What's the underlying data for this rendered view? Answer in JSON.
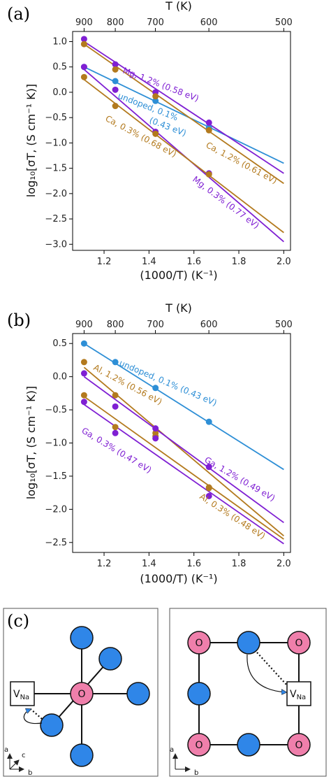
{
  "colors": {
    "undoped": "#2e8fd6",
    "purple": "#7f1fd3",
    "gold": "#b37a1e",
    "blue_site": "#2f86e8",
    "pink_site": "#ef7fab"
  },
  "chart_data": [
    {
      "type": "scatter",
      "panel_label": "(a)",
      "xlabel": "(1000/T) (K⁻¹)",
      "ylabel": "log₁₀[σT, (S cm⁻¹ K)]",
      "top_axis_label": "T (K)",
      "xlim": [
        1.06,
        2.03
      ],
      "ylim": [
        -3.12,
        1.2
      ],
      "x_ticks": [
        "1.2",
        "1.4",
        "1.6",
        "1.8",
        "2.0"
      ],
      "y_ticks": [
        "1.0",
        "0.5",
        "0.0",
        "−0.5",
        "−1.0",
        "−1.5",
        "−2.0",
        "−2.5",
        "−3.0"
      ],
      "top_ticks": [
        "900",
        "800",
        "700",
        "600",
        "500"
      ],
      "grid": false,
      "series": [
        {
          "label": "undoped, 0.1%\n(0.43 eV)",
          "color_key": "undoped",
          "x": [
            1.111,
            1.25,
            1.429,
            1.667
          ],
          "y": [
            0.5,
            0.22,
            -0.17,
            -0.7
          ],
          "fit": [
            [
              1.111,
              0.5
            ],
            [
              2.0,
              -1.4
            ]
          ]
        },
        {
          "label": "Mg, 1.2% (0.58 eV)",
          "color_key": "purple",
          "x": [
            1.111,
            1.25,
            1.429,
            1.667
          ],
          "y": [
            1.05,
            0.55,
            0.0,
            -0.6
          ],
          "fit": [
            [
              1.111,
              1.0
            ],
            [
              2.0,
              -1.6
            ]
          ]
        },
        {
          "label": "Mg, 0.3% (0.77 eV)",
          "color_key": "purple",
          "x": [
            1.111,
            1.25,
            1.429,
            1.667
          ],
          "y": [
            0.5,
            0.05,
            -0.78,
            -1.6
          ],
          "fit": [
            [
              1.111,
              0.45
            ],
            [
              2.0,
              -2.95
            ]
          ]
        },
        {
          "label": "Ca, 1.2% (0.61 eV)",
          "color_key": "gold",
          "x": [
            1.111,
            1.25,
            1.429,
            1.667
          ],
          "y": [
            0.95,
            0.45,
            -0.08,
            -0.75
          ],
          "fit": [
            [
              1.111,
              0.95
            ],
            [
              2.0,
              -1.8
            ]
          ]
        },
        {
          "label": "Ca, 0.3% (0.68 eV)",
          "color_key": "gold",
          "x": [
            1.111,
            1.25,
            1.429,
            1.667
          ],
          "y": [
            0.3,
            -0.27,
            -0.82,
            -1.62
          ],
          "fit": [
            [
              1.111,
              0.25
            ],
            [
              2.0,
              -2.77
            ]
          ]
        }
      ]
    },
    {
      "type": "scatter",
      "panel_label": "(b)",
      "xlabel": "(1000/T) (K⁻¹)",
      "ylabel": "log₁₀[σT, (S cm⁻¹ K)]",
      "top_axis_label": "T (K)",
      "xlim": [
        1.06,
        2.03
      ],
      "ylim": [
        -2.65,
        0.65
      ],
      "x_ticks": [
        "1.2",
        "1.4",
        "1.6",
        "1.8",
        "2.0"
      ],
      "y_ticks": [
        "0.5",
        "0.0",
        "−0.5",
        "−1.0",
        "−1.5",
        "−2.0",
        "−2.5"
      ],
      "top_ticks": [
        "900",
        "800",
        "700",
        "600",
        "500"
      ],
      "grid": false,
      "series": [
        {
          "label": "undoped, 0.1% (0.43 eV)",
          "color_key": "undoped",
          "x": [
            1.111,
            1.25,
            1.429,
            1.667
          ],
          "y": [
            0.5,
            0.22,
            -0.17,
            -0.68
          ],
          "fit": [
            [
              1.111,
              0.5
            ],
            [
              2.0,
              -1.4
            ]
          ]
        },
        {
          "label": "Al, 1.2% (0.56 eV)",
          "color_key": "gold",
          "x": [
            1.111,
            1.25,
            1.429,
            1.667
          ],
          "y": [
            0.22,
            -0.28,
            -0.85,
            -1.67
          ],
          "fit": [
            [
              1.111,
              0.14
            ],
            [
              2.0,
              -2.4
            ]
          ]
        },
        {
          "label": "Al, 0.3% (0.48 eV)",
          "color_key": "gold",
          "x": [
            1.111,
            1.25,
            1.429,
            1.667
          ],
          "y": [
            -0.28,
            -0.76,
            -0.9,
            -1.68
          ],
          "fit": [
            [
              1.111,
              -0.3
            ],
            [
              2.0,
              -2.45
            ]
          ]
        },
        {
          "label": "Ga, 1.2% (0.49 eV)",
          "color_key": "purple",
          "x": [
            1.111,
            1.25,
            1.429,
            1.667
          ],
          "y": [
            0.05,
            -0.45,
            -0.78,
            -1.36
          ],
          "fit": [
            [
              1.111,
              0.0
            ],
            [
              2.0,
              -2.2
            ]
          ]
        },
        {
          "label": "Ga, 0.3% (0.47 eV)",
          "color_key": "purple",
          "x": [
            1.111,
            1.25,
            1.429,
            1.667
          ],
          "y": [
            -0.38,
            -0.85,
            -0.93,
            -1.8
          ],
          "fit": [
            [
              1.111,
              -0.42
            ],
            [
              2.0,
              -2.52
            ]
          ]
        }
      ]
    }
  ],
  "diagram_c": {
    "panel_label": "(c)",
    "left": {
      "center_label": "O",
      "vacancy_main": "V",
      "vacancy_sub": "Na",
      "axes": {
        "a": "a",
        "b": "b",
        "c": "c"
      }
    },
    "right": {
      "corner_label": "O",
      "vacancy_main": "V",
      "vacancy_sub": "Na",
      "axes": {
        "a": "a",
        "b": "b"
      }
    }
  }
}
